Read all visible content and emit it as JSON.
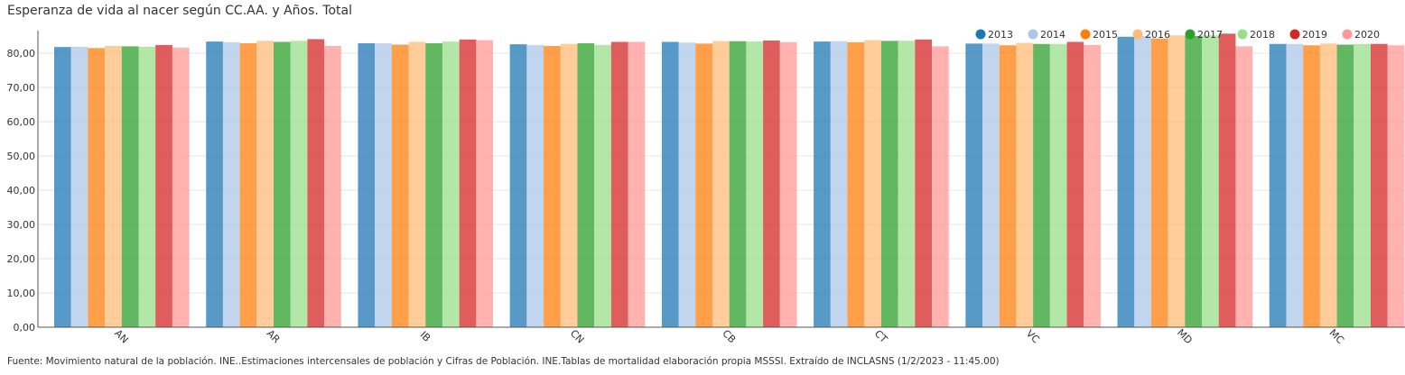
{
  "chart_data": {
    "type": "bar",
    "title": "Esperanza de vida al nacer según CC.AA. y Años. Total",
    "source": "Fuente: Movimiento natural de la población. INE..Estimaciones intercensales de población y Cifras de Población. INE.Tablas de mortalidad elaboración propia MSSSI. Extraído de INCLASNS (1/2/2023 - 11:45.00)",
    "categories": [
      "AN",
      "AR",
      "IB",
      "CN",
      "CB",
      "CT",
      "VC",
      "MD",
      "MC"
    ],
    "ylim": [
      0,
      85
    ],
    "yticks": [
      "0,00",
      "10,00",
      "20,00",
      "30,00",
      "40,00",
      "50,00",
      "60,00",
      "70,00",
      "80,00"
    ],
    "grid": true,
    "legend_position": "top-right",
    "series": [
      {
        "name": "2013",
        "color": "#1f77b4",
        "values": [
          81.8,
          83.4,
          82.9,
          82.6,
          83.3,
          83.4,
          82.8,
          84.8,
          82.7
        ]
      },
      {
        "name": "2014",
        "color": "#aec7e8",
        "values": [
          81.9,
          83.2,
          82.9,
          82.4,
          83.1,
          83.5,
          82.8,
          85.0,
          82.7
        ]
      },
      {
        "name": "2015",
        "color": "#ff7f0e",
        "values": [
          81.5,
          82.9,
          82.5,
          82.1,
          82.8,
          83.2,
          82.3,
          84.3,
          82.3
        ]
      },
      {
        "name": "2016",
        "color": "#ffbb78",
        "values": [
          82.1,
          83.6,
          83.3,
          82.7,
          83.5,
          83.8,
          83.0,
          85.2,
          82.8
        ]
      },
      {
        "name": "2017",
        "color": "#2ca02c",
        "values": [
          82.0,
          83.3,
          82.9,
          82.9,
          83.5,
          83.6,
          82.7,
          85.0,
          82.5
        ]
      },
      {
        "name": "2018",
        "color": "#98df8a",
        "values": [
          81.9,
          83.6,
          83.4,
          82.4,
          83.4,
          83.6,
          82.7,
          85.2,
          82.7
        ]
      },
      {
        "name": "2019",
        "color": "#d62728",
        "values": [
          82.4,
          84.1,
          84.0,
          83.3,
          83.7,
          84.0,
          83.3,
          85.7,
          82.7
        ]
      },
      {
        "name": "2020",
        "color": "#ff9896",
        "values": [
          81.6,
          82.1,
          83.8,
          83.3,
          83.2,
          82.0,
          82.4,
          82.0,
          82.3
        ]
      }
    ]
  }
}
